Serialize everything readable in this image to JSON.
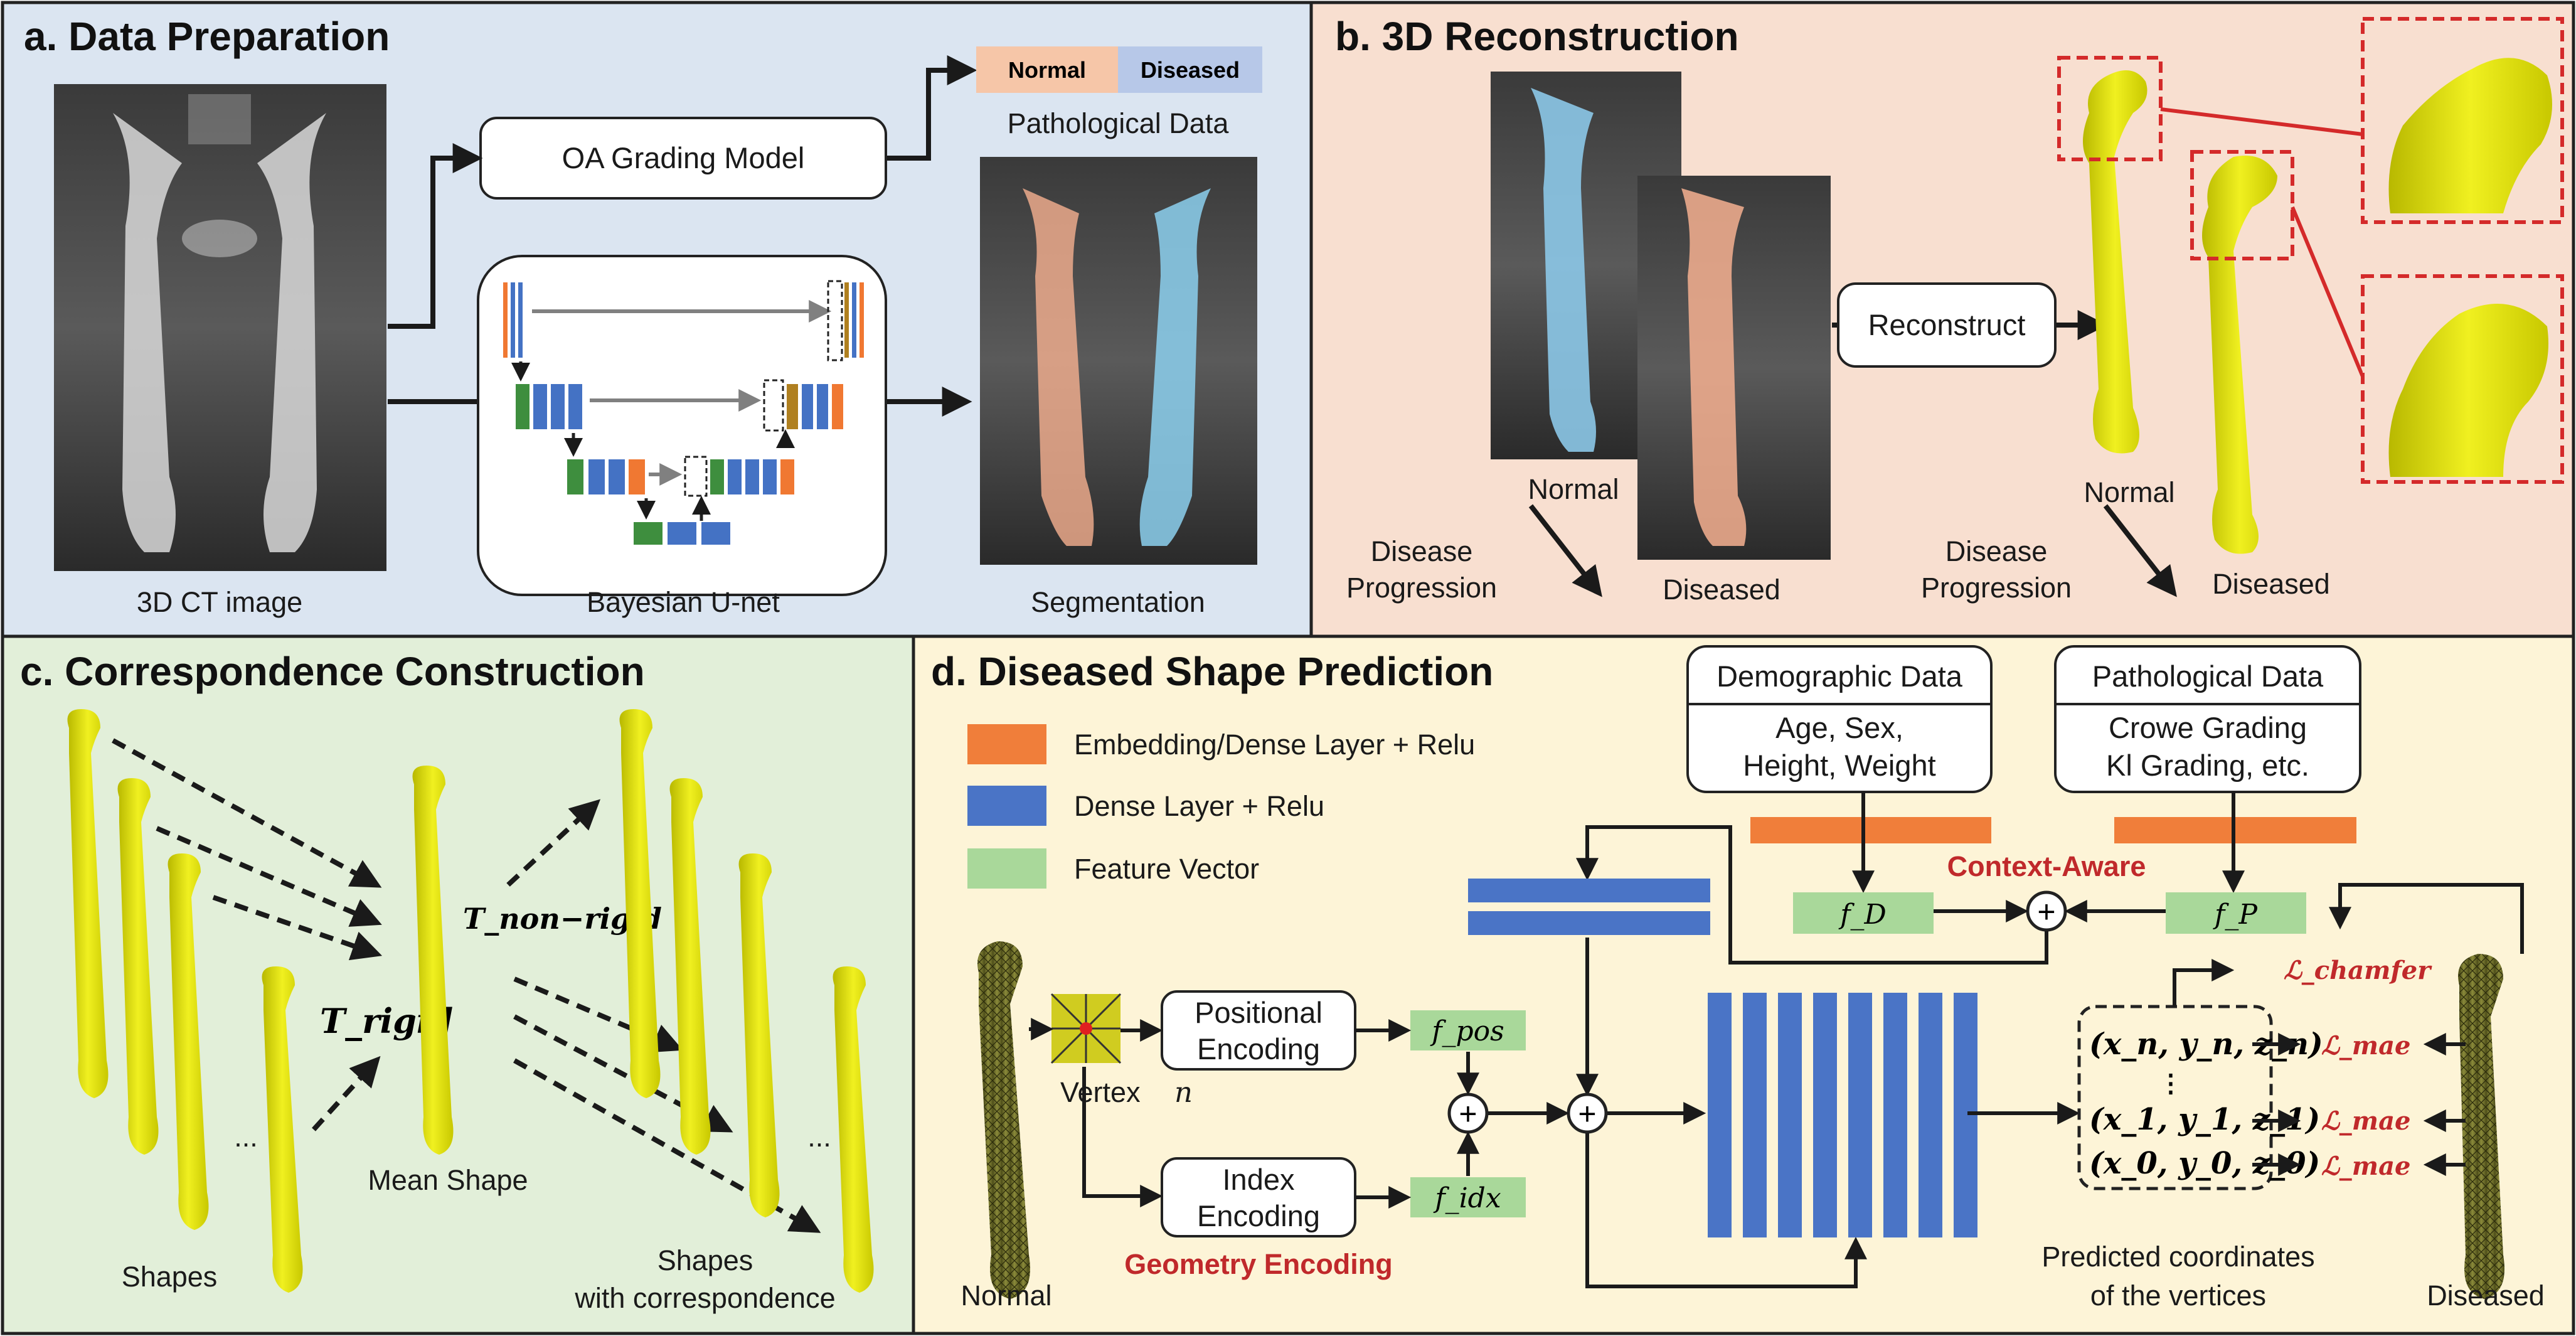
{
  "panels": {
    "a": {
      "title": "a. Data Preparation",
      "ct_label": "3D CT image",
      "oa_model": "OA Grading Model",
      "normal_tag": "Normal",
      "diseased_tag": "Diseased",
      "pathological_data": "Pathological Data",
      "unet_label": "Bayesian U-net",
      "segmentation_label": "Segmentation"
    },
    "b": {
      "title": "b. 3D Reconstruction",
      "normal": "Normal",
      "diseased": "Diseased",
      "disease": "Disease",
      "progression": "Progression",
      "reconstruct": "Reconstruct"
    },
    "c": {
      "title": "c. Correspondence Construction",
      "t_rigid": "T_rigid",
      "t_nonrigid": "T_non−rigid",
      "mean_shape": "Mean Shape",
      "shapes": "Shapes",
      "with_correspondence": "with correspondence",
      "ellipsis": "..."
    },
    "d": {
      "title": "d. Diseased Shape Prediction",
      "legend": [
        "Embedding/Dense Layer + Relu",
        "Dense Layer + Relu",
        "Feature Vector"
      ],
      "demographic": {
        "title": "Demographic Data",
        "line1": "Age, Sex,",
        "line2": "Height, Weight"
      },
      "pathological": {
        "title": "Pathological Data",
        "line1": "Crowe Grading",
        "line2": "Kl Grading, etc."
      },
      "context_aware": "Context-Aware",
      "f_d": "f_D",
      "f_p": "f_P",
      "f_pos": "f_pos",
      "f_idx": "f_idx",
      "plus": "+",
      "normal": "Normal",
      "diseased": "Diseased",
      "vertex": "Vertex",
      "vertex_n": "n",
      "positional": [
        "Positional",
        "Encoding"
      ],
      "index": [
        "Index",
        "Encoding"
      ],
      "geometry_encoding": "Geometry Encoding",
      "coords": [
        "(x_n, y_n, z_n)",
        "⋮",
        "(x_1, y_1, z_1)",
        "(x_0, y_0, z_0)"
      ],
      "loss_chamfer": "ℒ_chamfer",
      "loss_mae": "ℒ_mae",
      "predicted": [
        "Predicted coordinates",
        "of the vertices"
      ]
    }
  },
  "colors": {
    "panel_a": "#dbe5f1",
    "panel_b": "#f8dfd0",
    "panel_c": "#e2efd9",
    "panel_d": "#fdf4d7",
    "embedding_layer": "#f07e3a",
    "dense_layer": "#4a74c6",
    "feature_vector": "#a9d89a",
    "highlight_red": "#c0292b",
    "bone_yellow": "#f0f020"
  }
}
